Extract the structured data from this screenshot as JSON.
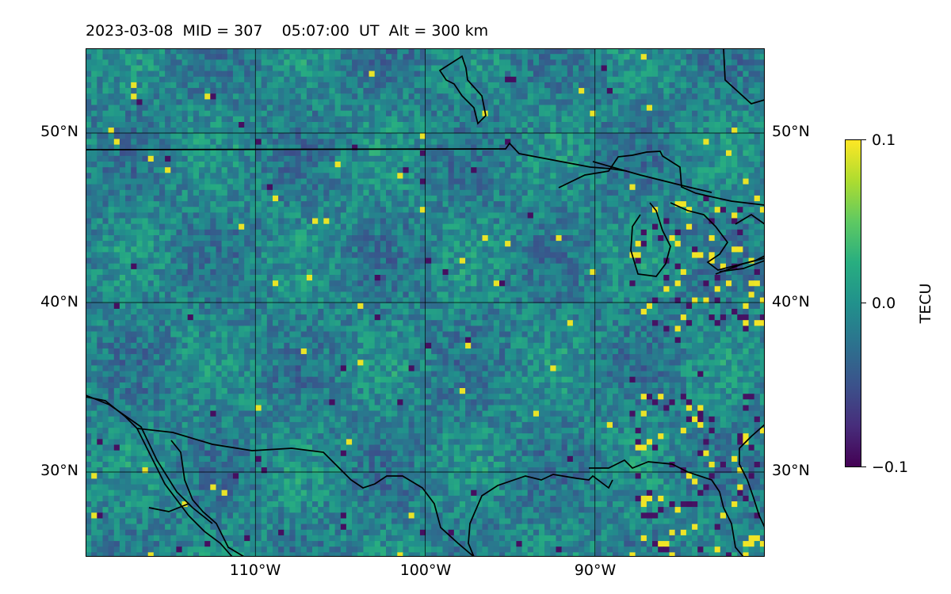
{
  "title": {
    "date": "2023-03-08",
    "mid": "MID = 307",
    "time": "05:07:00  UT",
    "alt": "Alt = 300 km"
  },
  "map": {
    "projection": "equirectangular",
    "lon_range": [
      -120,
      -80
    ],
    "lat_range": [
      25,
      55
    ],
    "field": "total electron content differential, random pixel field on viridis colormap",
    "features": [
      "coastlines",
      "country-borders",
      "great-lakes"
    ],
    "gridlines": {
      "lon": [
        -110,
        -100,
        -90
      ],
      "lat": [
        30,
        40,
        50
      ]
    }
  },
  "axes": {
    "lat_labels": [
      "30°N",
      "40°N",
      "50°N"
    ],
    "lon_labels": [
      "110°W",
      "100°W",
      "90°W"
    ]
  },
  "colorbar": {
    "label": "TECU",
    "colormap": "viridis",
    "range": [
      -0.1,
      0.1
    ],
    "ticks": [
      {
        "value": 0.1,
        "label": "0.1"
      },
      {
        "value": 0.0,
        "label": "0.0"
      },
      {
        "value": -0.1,
        "label": "−0.1"
      }
    ]
  },
  "colors": {
    "viridis_low": "#440154",
    "viridis_mid": "#21918c",
    "viridis_high": "#fde725"
  }
}
